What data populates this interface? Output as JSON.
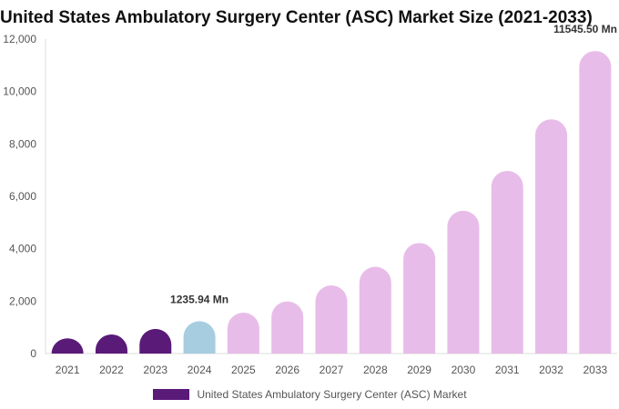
{
  "chart_data": {
    "type": "bar",
    "title": "United States Ambulatory Surgery Center (ASC) Market Size (2021-2033)",
    "xlabel": "",
    "ylabel": "",
    "categories": [
      "2021",
      "2022",
      "2023",
      "2024",
      "2025",
      "2026",
      "2027",
      "2028",
      "2029",
      "2030",
      "2031",
      "2032",
      "2033"
    ],
    "series": [
      {
        "name": "United States Ambulatory Surgery Center (ASC) Market",
        "values": [
          580,
          730,
          940,
          1235.94,
          1560,
          1990,
          2600,
          3310,
          4220,
          5450,
          6970,
          8940,
          11545.5
        ]
      }
    ],
    "bar_colors": [
      "#5a1a78",
      "#5a1a78",
      "#5a1a78",
      "#a6cde0",
      "#e8bce8",
      "#e8bce8",
      "#e8bce8",
      "#e8bce8",
      "#e8bce8",
      "#e8bce8",
      "#e8bce8",
      "#e8bce8",
      "#e8bce8"
    ],
    "data_labels": [
      {
        "category": "2024",
        "text": "1235.94 Mn"
      },
      {
        "category": "2033",
        "text": "11545.50 Mn"
      }
    ],
    "y_ticks": [
      "0",
      "2,000",
      "4,000",
      "6,000",
      "8,000",
      "10,000",
      "12,000"
    ],
    "ylim": [
      0,
      12000
    ],
    "grid": false,
    "legend": {
      "position": "bottom",
      "label": "United States Ambulatory Surgery Center (ASC) Market",
      "color": "#5a1a78"
    }
  }
}
